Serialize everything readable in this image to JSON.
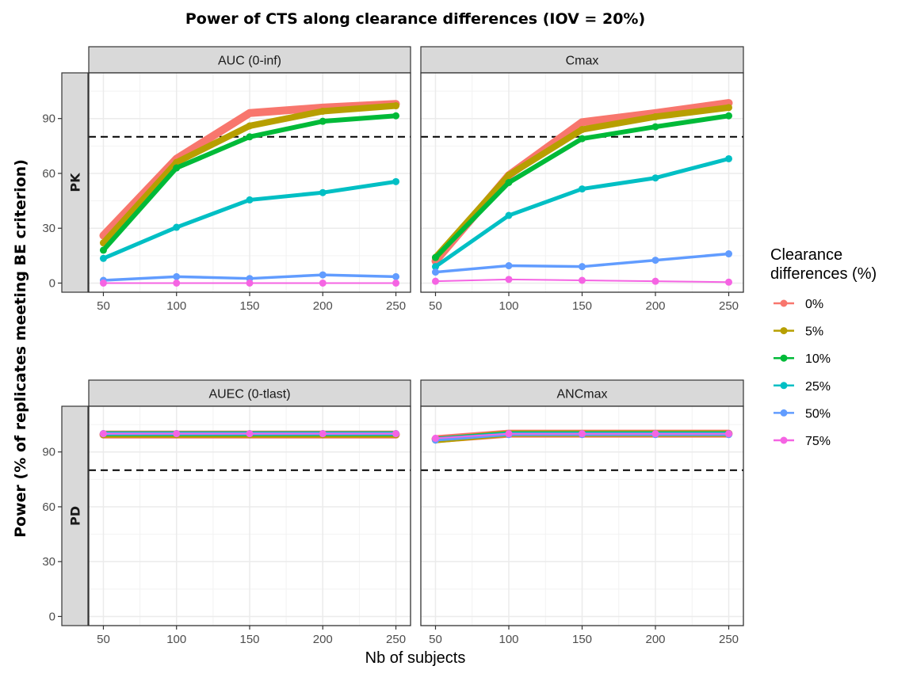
{
  "chart_data": {
    "type": "line",
    "title": "Power of CTS along clearance differences (IOV = 20%)",
    "xlabel": "Nb of subjects",
    "ylabel": "Power (% of replicates meeting BE criterion)",
    "x": [
      50,
      100,
      150,
      200,
      250
    ],
    "x_ticks": [
      "50",
      "100",
      "150",
      "200",
      "250"
    ],
    "y_ticks": [
      "0",
      "30",
      "60",
      "90"
    ],
    "ylim": [
      -5,
      115
    ],
    "threshold": 80,
    "grid": true,
    "legend": {
      "title_line1": "Clearance",
      "title_line2": "differences (%)",
      "position": "right"
    },
    "series_meta": [
      {
        "name": "0%",
        "color": "#F8766D",
        "width": 10
      },
      {
        "name": "5%",
        "color": "#B79F00",
        "width": 8
      },
      {
        "name": "10%",
        "color": "#00BA38",
        "width": 6
      },
      {
        "name": "25%",
        "color": "#00BFC4",
        "width": 5
      },
      {
        "name": "50%",
        "color": "#619CFF",
        "width": 3.5
      },
      {
        "name": "75%",
        "color": "#F564E3",
        "width": 2
      }
    ],
    "rows": [
      "PK",
      "PD"
    ],
    "panels": [
      {
        "strip": "AUC (0-inf)",
        "row": "PK",
        "series": [
          {
            "name": "0%",
            "values": [
              26,
              68,
              93,
              96,
              98
            ]
          },
          {
            "name": "5%",
            "values": [
              22,
              66,
              86,
              94,
              97
            ]
          },
          {
            "name": "10%",
            "values": [
              18,
              63,
              80,
              88.5,
              91.5
            ]
          },
          {
            "name": "25%",
            "values": [
              13.5,
              30.5,
              45.5,
              49.5,
              55.5
            ]
          },
          {
            "name": "50%",
            "values": [
              1.5,
              3.5,
              2.5,
              4.5,
              3.5
            ]
          },
          {
            "name": "75%",
            "values": [
              0,
              0,
              0,
              0,
              0
            ]
          }
        ]
      },
      {
        "strip": "Cmax",
        "row": "PK",
        "series": [
          {
            "name": "0%",
            "values": [
              12,
              59,
              88,
              93,
              98.5
            ]
          },
          {
            "name": "5%",
            "values": [
              14,
              59,
              84,
              91,
              96
            ]
          },
          {
            "name": "10%",
            "values": [
              14,
              55,
              79,
              85.5,
              91.5
            ]
          },
          {
            "name": "25%",
            "values": [
              9,
              37,
              51.5,
              57.5,
              68
            ]
          },
          {
            "name": "50%",
            "values": [
              6,
              9.5,
              9,
              12.5,
              16
            ]
          },
          {
            "name": "75%",
            "values": [
              1,
              2,
              1.5,
              1,
              0.5
            ]
          }
        ]
      },
      {
        "strip": "AUEC (0-tlast)",
        "row": "PD",
        "series": [
          {
            "name": "0%",
            "values": [
              99.5,
              99.5,
              99.5,
              99.5,
              99.5
            ]
          },
          {
            "name": "5%",
            "values": [
              99.5,
              99.5,
              99.5,
              99.5,
              99.5
            ]
          },
          {
            "name": "10%",
            "values": [
              100,
              100,
              100,
              100,
              100
            ]
          },
          {
            "name": "25%",
            "values": [
              100,
              100,
              100,
              100,
              100
            ]
          },
          {
            "name": "50%",
            "values": [
              100,
              100,
              100,
              100,
              100
            ]
          },
          {
            "name": "75%",
            "values": [
              100,
              100,
              100,
              100,
              100
            ]
          }
        ]
      },
      {
        "strip": "ANCmax",
        "row": "PD",
        "series": [
          {
            "name": "0%",
            "values": [
              97,
              100,
              100,
              100,
              100
            ]
          },
          {
            "name": "5%",
            "values": [
              96.5,
              100,
              100,
              100,
              100
            ]
          },
          {
            "name": "10%",
            "values": [
              97,
              100,
              100,
              100,
              100
            ]
          },
          {
            "name": "25%",
            "values": [
              97,
              100,
              100,
              100,
              100
            ]
          },
          {
            "name": "50%",
            "values": [
              96.5,
              99.5,
              99.5,
              99.5,
              99.5
            ]
          },
          {
            "name": "75%",
            "values": [
              97.5,
              100,
              100,
              100,
              100
            ]
          }
        ]
      }
    ]
  }
}
